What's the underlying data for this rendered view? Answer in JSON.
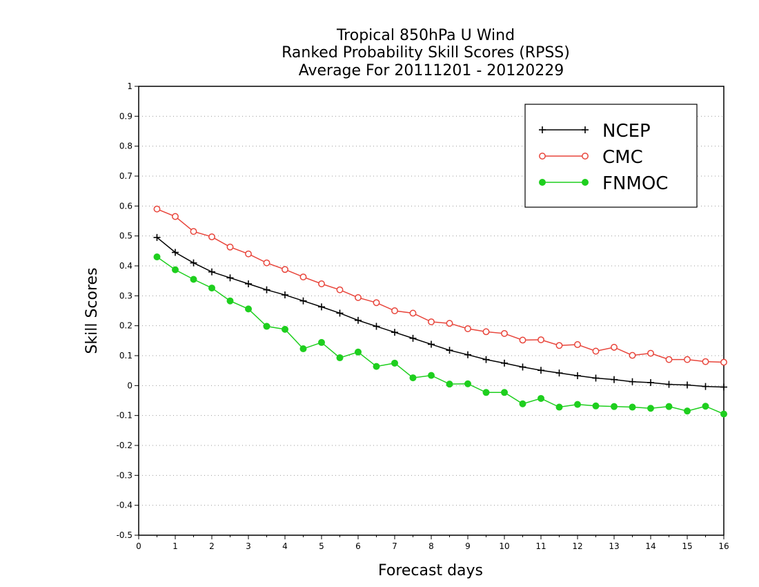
{
  "chart_data": {
    "type": "line",
    "title_lines": [
      "Tropical 850hPa U Wind",
      "Ranked Probability Skill Scores (RPSS)",
      "Average For 20111201 - 20120229"
    ],
    "xlabel": "Forecast days",
    "ylabel": "Skill Scores",
    "xlim": [
      0,
      16
    ],
    "ylim": [
      -0.5,
      1
    ],
    "x_ticks": [
      0,
      1,
      2,
      3,
      4,
      5,
      6,
      7,
      8,
      9,
      10,
      11,
      12,
      13,
      14,
      15,
      16
    ],
    "x_tick_labels": [
      "0",
      "1",
      "2",
      "3",
      "4",
      "5",
      "6",
      "7",
      "8",
      "9",
      "10",
      "11",
      "12",
      "13",
      "14",
      "15",
      "16"
    ],
    "y_ticks": [
      -0.5,
      -0.4,
      -0.3,
      -0.2,
      -0.1,
      0,
      0.1,
      0.2,
      0.3,
      0.4,
      0.5,
      0.6,
      0.7,
      0.8,
      0.9,
      1
    ],
    "y_tick_labels": [
      "-0.5",
      "-0.4",
      "-0.3",
      "-0.2",
      "-0.1",
      "0",
      "0.1",
      "0.2",
      "0.3",
      "0.4",
      "0.5",
      "0.6",
      "0.7",
      "0.8",
      "0.9",
      "1"
    ],
    "grid": "dotted horizontal",
    "legend_position": "top-right",
    "x": [
      0.5,
      1,
      1.5,
      2,
      2.5,
      3,
      3.5,
      4,
      4.5,
      5,
      5.5,
      6,
      6.5,
      7,
      7.5,
      8,
      8.5,
      9,
      9.5,
      10,
      10.5,
      11,
      11.5,
      12,
      12.5,
      13,
      13.5,
      14,
      14.5,
      15,
      15.5,
      16
    ],
    "series": [
      {
        "name": "NCEP",
        "color": "#000000",
        "marker": "plus",
        "values": [
          0.495,
          0.445,
          0.41,
          0.38,
          0.36,
          0.34,
          0.32,
          0.303,
          0.283,
          0.263,
          0.242,
          0.218,
          0.198,
          0.178,
          0.158,
          0.138,
          0.118,
          0.103,
          0.087,
          0.075,
          0.062,
          0.051,
          0.042,
          0.033,
          0.025,
          0.02,
          0.013,
          0.01,
          0.004,
          0.002,
          -0.003,
          -0.005
        ]
      },
      {
        "name": "CMC",
        "color": "#e8443a",
        "marker": "open-circle",
        "values": [
          0.59,
          0.565,
          0.515,
          0.497,
          0.463,
          0.44,
          0.41,
          0.388,
          0.363,
          0.34,
          0.32,
          0.294,
          0.277,
          0.25,
          0.242,
          0.213,
          0.208,
          0.19,
          0.18,
          0.174,
          0.152,
          0.153,
          0.134,
          0.137,
          0.115,
          0.128,
          0.101,
          0.108,
          0.087,
          0.087,
          0.08,
          0.078
        ]
      },
      {
        "name": "FNMOC",
        "color": "#1ecf1e",
        "marker": "filled-circle",
        "values": [
          0.43,
          0.387,
          0.355,
          0.326,
          0.283,
          0.256,
          0.198,
          0.188,
          0.123,
          0.144,
          0.093,
          0.112,
          0.064,
          0.075,
          0.026,
          0.034,
          0.005,
          0.006,
          -0.023,
          -0.023,
          -0.061,
          -0.043,
          -0.072,
          -0.063,
          -0.068,
          -0.07,
          -0.072,
          -0.076,
          -0.07,
          -0.085,
          -0.069,
          -0.095
        ]
      }
    ]
  }
}
